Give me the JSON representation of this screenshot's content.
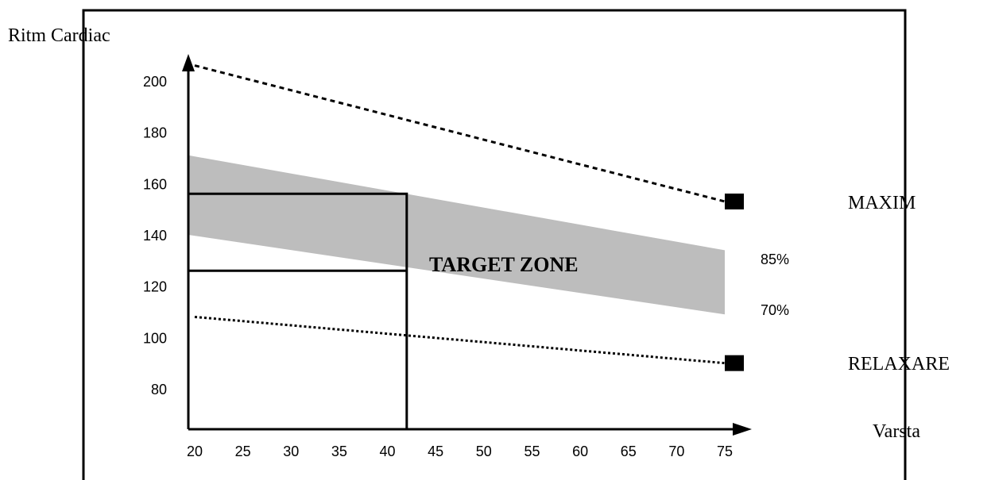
{
  "chart_data": {
    "type": "line",
    "ylabel": "Ritm Cardiac",
    "xlabel": "Varsta",
    "x_ticks": [
      "20",
      "25",
      "30",
      "35",
      "40",
      "45",
      "50",
      "55",
      "60",
      "65",
      "70",
      "75"
    ],
    "y_ticks": [
      "80",
      "100",
      "120",
      "140",
      "160",
      "180",
      "200"
    ],
    "xlim": [
      20,
      75
    ],
    "ylim": [
      80,
      200
    ],
    "grid": false,
    "series": [
      {
        "name": "MAXIM",
        "style": "dashed",
        "x": [
          20,
          75
        ],
        "y": [
          206,
          153
        ],
        "color": "#000000"
      },
      {
        "name": "RELAXARE",
        "style": "dotted",
        "x": [
          20,
          75
        ],
        "y": [
          108,
          90
        ],
        "color": "#000000"
      }
    ],
    "band": {
      "label": "TARGET ZONE",
      "upper_label": "85%",
      "lower_label": "70%",
      "x": [
        20,
        75
      ],
      "upper": [
        171,
        134
      ],
      "lower": [
        140,
        109
      ],
      "color": "#bdbdbd"
    },
    "example": {
      "age": 42,
      "upper": 156,
      "lower": 126
    }
  }
}
